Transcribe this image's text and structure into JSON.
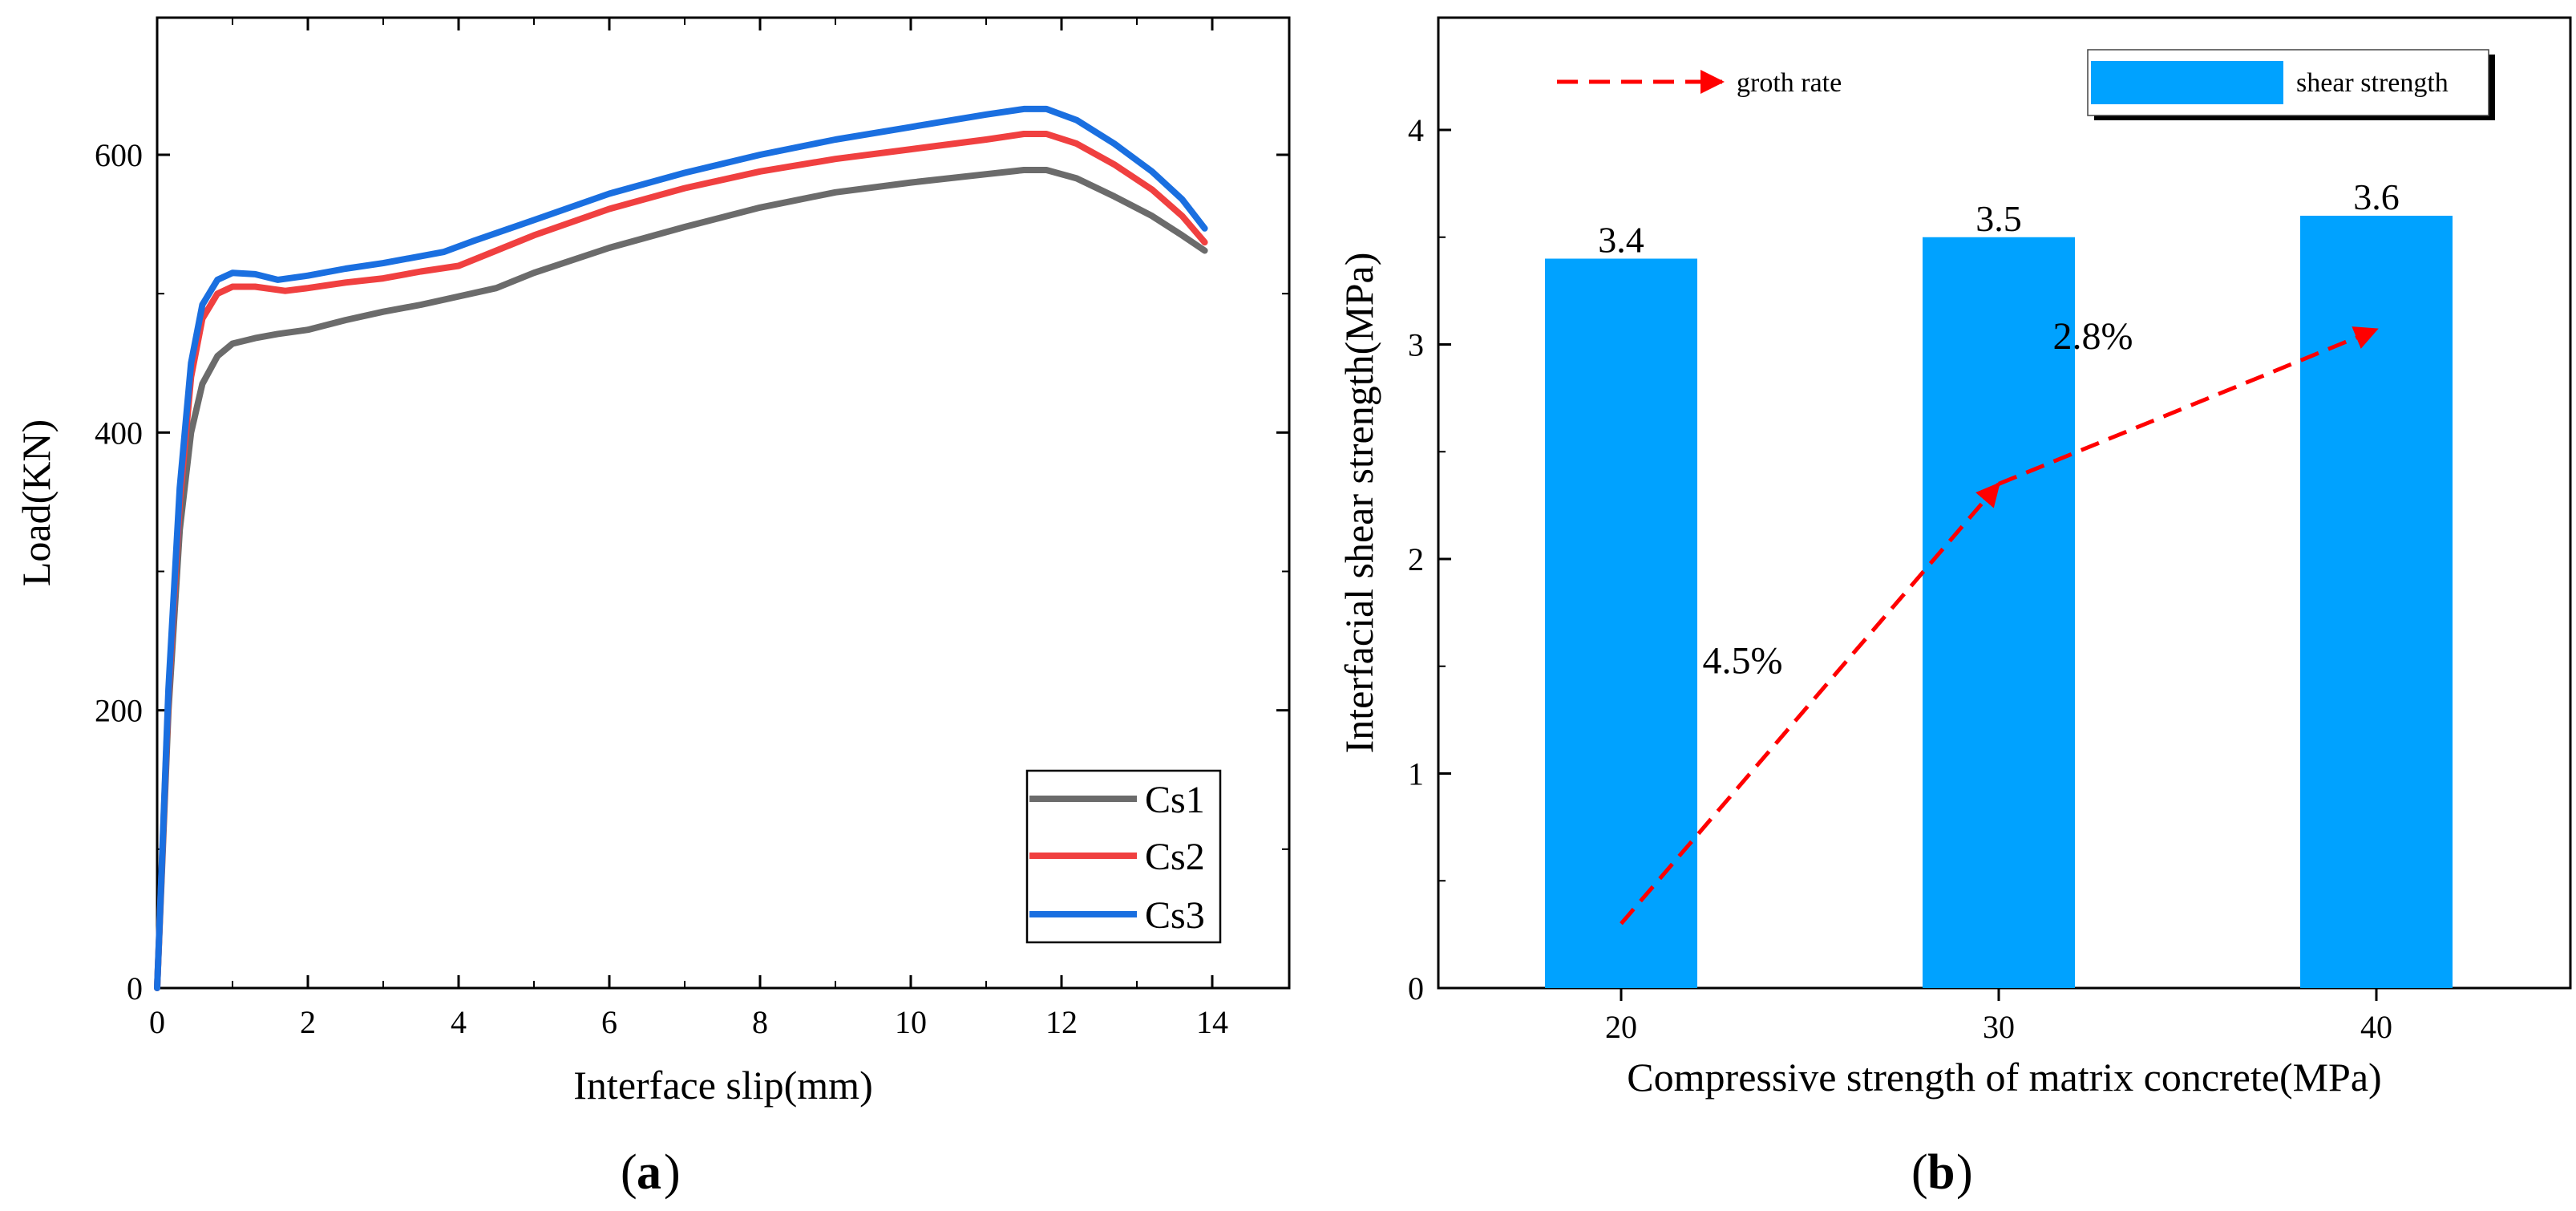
{
  "chart_data": [
    {
      "type": "line",
      "panel_label": "a",
      "xlabel": "Interface slip(mm)",
      "ylabel": "Load(KN)",
      "xlim": [
        0,
        15
      ],
      "ylim": [
        0,
        700
      ],
      "xticks": [
        0,
        2,
        4,
        6,
        8,
        10,
        12,
        14
      ],
      "yticks": [
        0,
        200,
        400,
        600
      ],
      "legend_position": "bottom-right",
      "series": [
        {
          "name": "Cs1",
          "color": "#6b6b6b",
          "points": [
            [
              0,
              0
            ],
            [
              0.15,
              200
            ],
            [
              0.3,
              330
            ],
            [
              0.45,
              400
            ],
            [
              0.6,
              435
            ],
            [
              0.8,
              455
            ],
            [
              1.0,
              464
            ],
            [
              1.3,
              468
            ],
            [
              1.6,
              471
            ],
            [
              2,
              474
            ],
            [
              2.5,
              481
            ],
            [
              3,
              487
            ],
            [
              3.5,
              492
            ],
            [
              4,
              498
            ],
            [
              4.5,
              504
            ],
            [
              5,
              515
            ],
            [
              6,
              533
            ],
            [
              7,
              548
            ],
            [
              8,
              562
            ],
            [
              9,
              573
            ],
            [
              10,
              580
            ],
            [
              11,
              586
            ],
            [
              11.5,
              589
            ],
            [
              11.8,
              589
            ],
            [
              12.2,
              583
            ],
            [
              12.7,
              570
            ],
            [
              13.2,
              556
            ],
            [
              13.6,
              542
            ],
            [
              13.9,
              531
            ]
          ]
        },
        {
          "name": "Cs2",
          "color": "#f04040",
          "points": [
            [
              0,
              0
            ],
            [
              0.15,
              210
            ],
            [
              0.3,
              350
            ],
            [
              0.45,
              440
            ],
            [
              0.6,
              482
            ],
            [
              0.8,
              500
            ],
            [
              1.0,
              505
            ],
            [
              1.3,
              505
            ],
            [
              1.7,
              502
            ],
            [
              2,
              504
            ],
            [
              2.5,
              508
            ],
            [
              3,
              511
            ],
            [
              3.5,
              516
            ],
            [
              4,
              520
            ],
            [
              4.5,
              531
            ],
            [
              5,
              542
            ],
            [
              6,
              561
            ],
            [
              7,
              576
            ],
            [
              8,
              588
            ],
            [
              9,
              597
            ],
            [
              10,
              604
            ],
            [
              11,
              611
            ],
            [
              11.5,
              615
            ],
            [
              11.8,
              615
            ],
            [
              12.2,
              608
            ],
            [
              12.7,
              593
            ],
            [
              13.2,
              575
            ],
            [
              13.6,
              556
            ],
            [
              13.9,
              537
            ]
          ]
        },
        {
          "name": "Cs3",
          "color": "#1a6fe0",
          "points": [
            [
              0,
              0
            ],
            [
              0.15,
              215
            ],
            [
              0.3,
              360
            ],
            [
              0.45,
              450
            ],
            [
              0.6,
              492
            ],
            [
              0.8,
              510
            ],
            [
              1.0,
              515
            ],
            [
              1.3,
              514
            ],
            [
              1.6,
              510
            ],
            [
              2,
              513
            ],
            [
              2.5,
              518
            ],
            [
              3,
              522
            ],
            [
              3.5,
              527
            ],
            [
              3.8,
              530
            ],
            [
              4.2,
              538
            ],
            [
              5,
              553
            ],
            [
              6,
              572
            ],
            [
              7,
              587
            ],
            [
              8,
              600
            ],
            [
              9,
              611
            ],
            [
              10,
              620
            ],
            [
              11,
              629
            ],
            [
              11.5,
              633
            ],
            [
              11.8,
              633
            ],
            [
              12.2,
              625
            ],
            [
              12.7,
              608
            ],
            [
              13.2,
              588
            ],
            [
              13.6,
              568
            ],
            [
              13.9,
              547
            ]
          ]
        }
      ]
    },
    {
      "type": "bar",
      "panel_label": "b",
      "xlabel": "Compressive strength of matrix concrete(MPa)",
      "ylabel": "Interfacial shear strength(MPa)",
      "ylim": [
        0,
        4.5
      ],
      "yticks": [
        0,
        1,
        2,
        3,
        4
      ],
      "categories": [
        "20",
        "30",
        "40"
      ],
      "values": [
        3.4,
        3.5,
        3.6
      ],
      "value_labels": [
        "3.4",
        "3.5",
        "3.6"
      ],
      "bar_color": "#00a2ff",
      "legend": {
        "bar_label": "shear strength",
        "arrow_label": "groth rate",
        "position": "top"
      },
      "growth_arrow": {
        "color": "#ff0000",
        "points": [
          [
            20,
            0.3
          ],
          [
            30,
            2.35
          ],
          [
            40,
            3.07
          ]
        ],
        "labels": [
          "4.5%",
          "2.8%"
        ]
      }
    }
  ]
}
